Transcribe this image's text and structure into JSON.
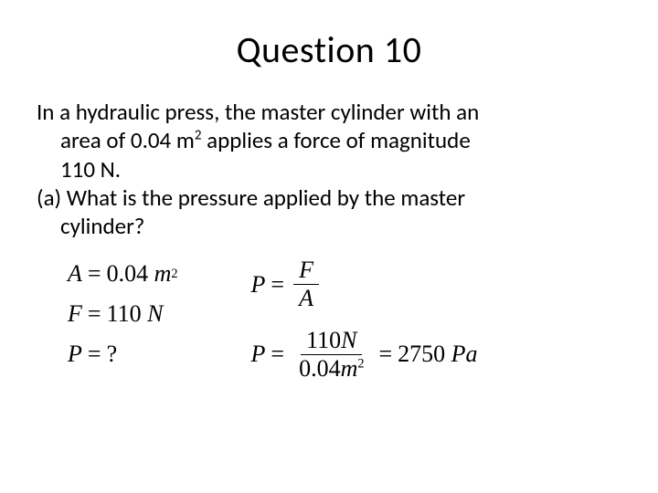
{
  "title": "Question 10",
  "problem": {
    "line1_prefix": "In a hydraulic press, the master cylinder with an",
    "line2": "area of 0.04 m",
    "line2_after_sup": " applies a force of magnitude",
    "line3": "110 N.",
    "part_a_prefix": "(a) What is the pressure applied by the master",
    "part_a_line2": "cylinder?"
  },
  "given": {
    "area_label": "A",
    "area_val": "0.04",
    "area_unit": "m",
    "force_label": "F",
    "force_val": "110",
    "force_unit": "N",
    "pressure_label": "P",
    "pressure_val": "?"
  },
  "formula": {
    "lhs": "P",
    "num": "F",
    "den": "A"
  },
  "calc": {
    "lhs": "P",
    "num_val": "110",
    "num_unit": "N",
    "den_val": "0.04",
    "den_unit": "m",
    "result_val": "2750",
    "result_unit": "Pa"
  },
  "style": {
    "background": "#ffffff",
    "text_color": "#000000",
    "title_fontsize": 40,
    "body_fontsize": 25,
    "eq_fontsize": 26
  }
}
